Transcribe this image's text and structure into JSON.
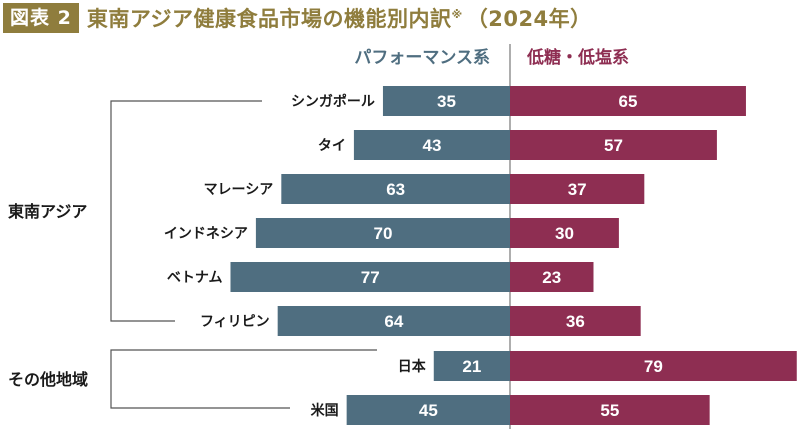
{
  "header": {
    "badge": "図表 2",
    "title": "東南アジア健康食品市場の機能別内訳",
    "note_mark": "※",
    "year": "（2024年）"
  },
  "colors": {
    "performance": "#4f6e80",
    "low_sugar_salt": "#8e2e52",
    "title": "#8f7d3d",
    "bracket": "#555555"
  },
  "chart_data": {
    "type": "bar",
    "orientation": "horizontal-diverging",
    "title": "東南アジア健康食品市場の機能別内訳※（2024年）",
    "unit": "%",
    "categories": [
      "シンガポール",
      "タイ",
      "マレーシア",
      "インドネシア",
      "ベトナム",
      "フィリピン",
      "日本",
      "米国"
    ],
    "groups": [
      {
        "label": "東南アジア",
        "members": [
          "シンガポール",
          "タイ",
          "マレーシア",
          "インドネシア",
          "ベトナム",
          "フィリピン"
        ]
      },
      {
        "label": "その他地域",
        "members": [
          "日本",
          "米国"
        ]
      }
    ],
    "series": [
      {
        "name": "パフォーマンス系",
        "direction": "left",
        "values": [
          35,
          43,
          63,
          70,
          77,
          64,
          21,
          45
        ]
      },
      {
        "name": "低糖・低塩系",
        "direction": "right",
        "values": [
          65,
          57,
          37,
          30,
          23,
          36,
          79,
          55
        ]
      }
    ],
    "legend": "top-center",
    "grid": false,
    "xlim": [
      0,
      100
    ]
  }
}
